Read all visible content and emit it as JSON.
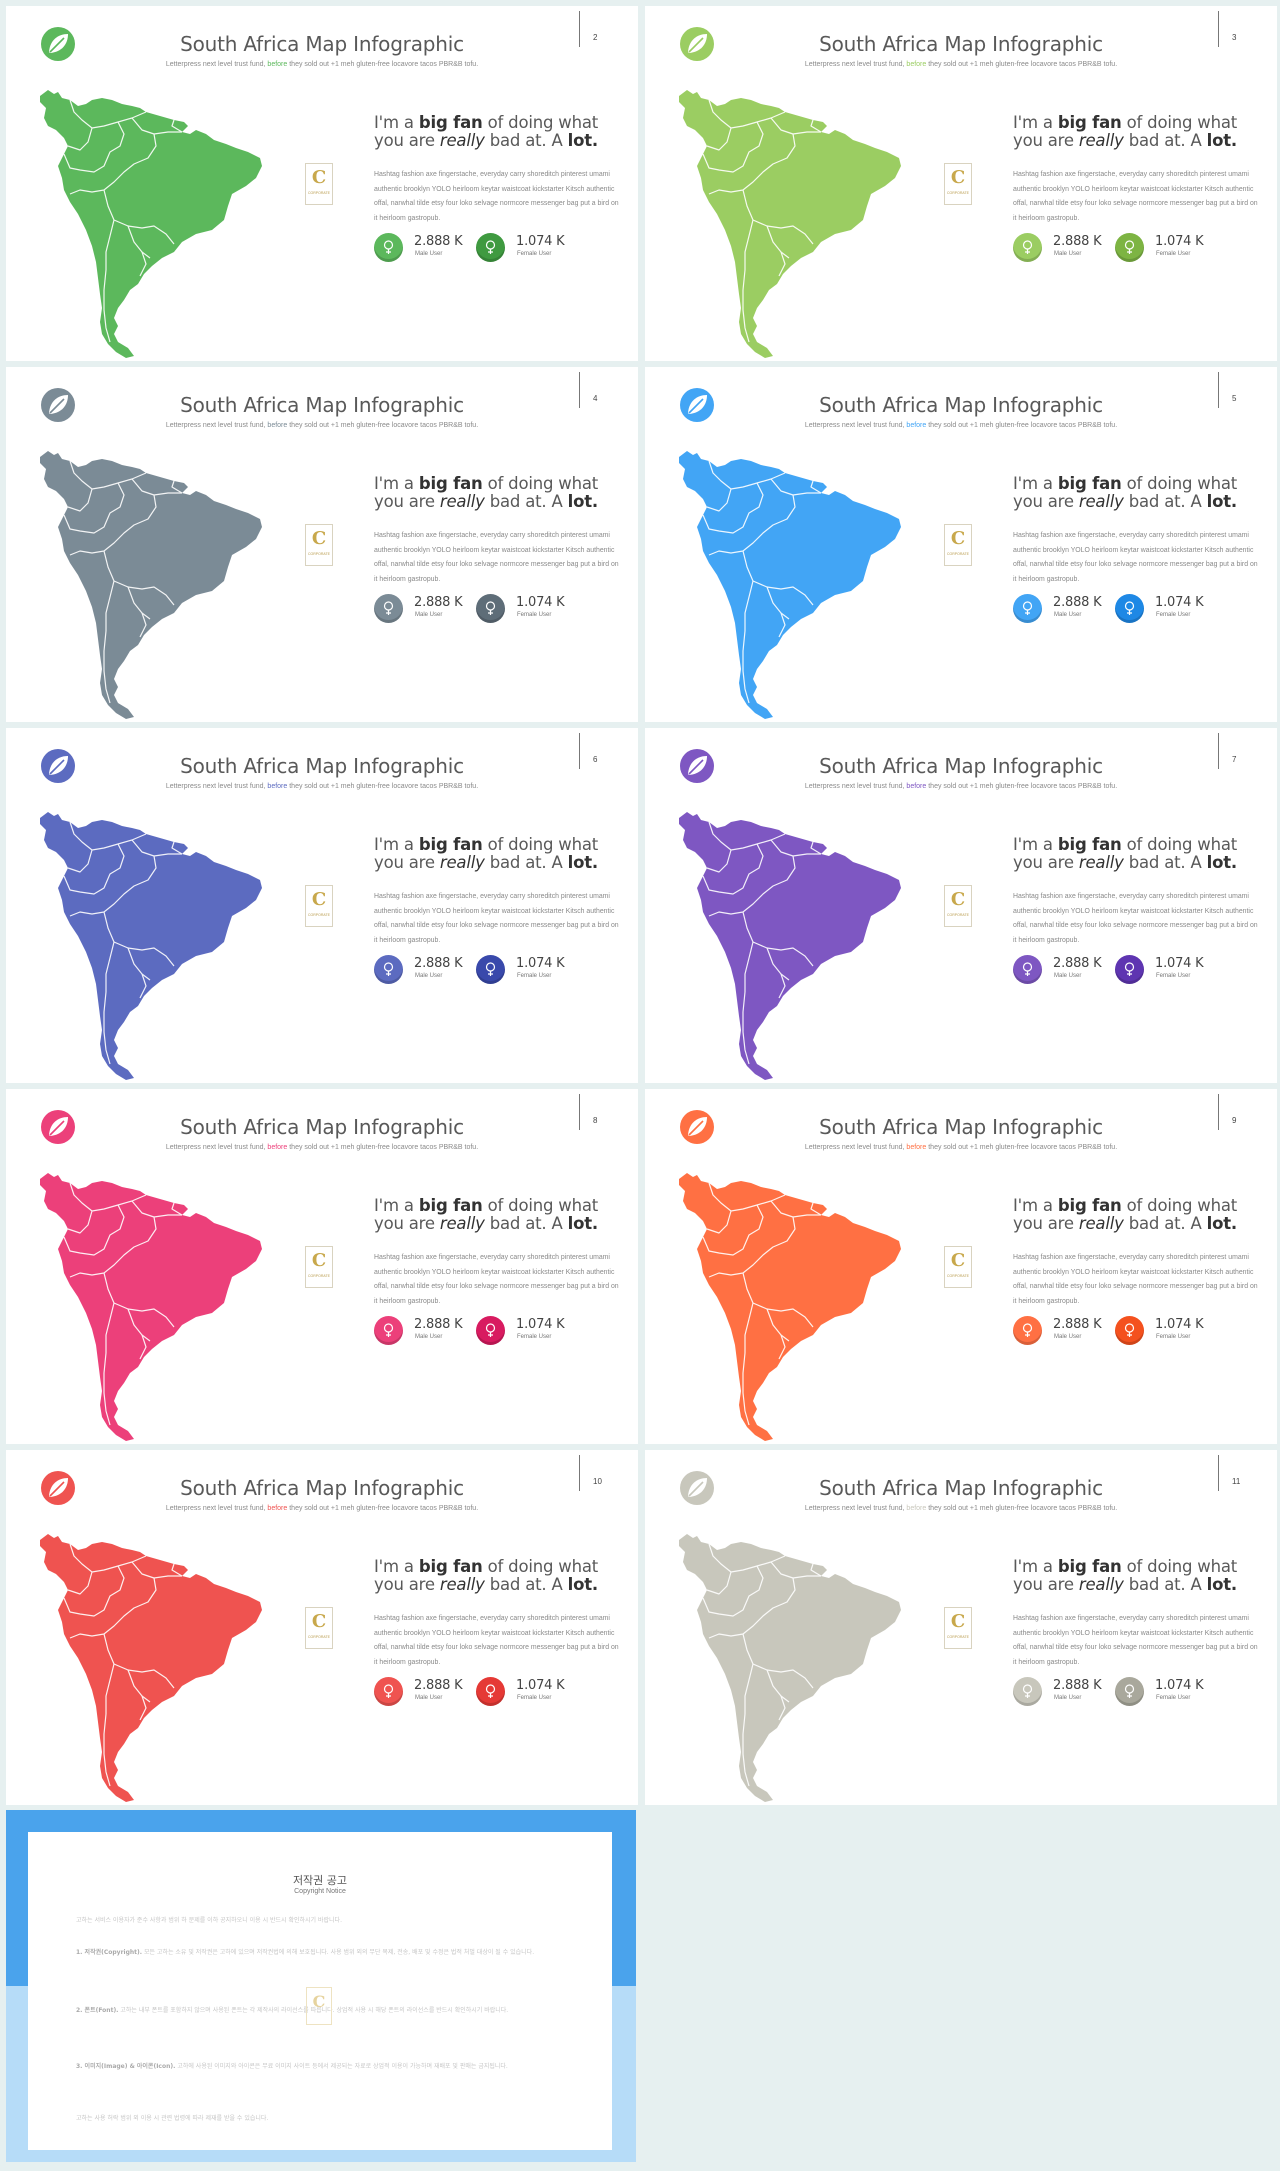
{
  "slides": [
    {
      "page": "2",
      "color": "#5cb85c",
      "dark": "#3f9a40",
      "title": "South Africa Map Infographic",
      "sub_pre": "Letterpress next level trust fund, ",
      "sub_hl": "before",
      "sub_post": " they sold out +1 meh gluten-free locavore tacos PBR&B tofu.",
      "head_a": "I'm a ",
      "head_b": "big fan",
      "head_c": " of doing what you are ",
      "head_d": "really",
      "head_e": " bad at. A ",
      "head_f": "lot.",
      "body": "Hashtag fashion axe fingerstache, everyday carry shoreditch pinterest umami authentic brooklyn YOLO heirloom keytar waistcoat kickstarter Kitsch authentic offal, narwhal tilde etsy four loko selvage normcore messenger bag put a bird on it heirloom gastropub.",
      "male_value": "2.888 K",
      "male_label": "Male User",
      "female_value": "1.074 K",
      "female_label": "Female User",
      "badge_letter": "C",
      "badge_text": "CORPORATE"
    },
    {
      "page": "3",
      "color": "#9bcd62",
      "dark": "#7db443",
      "title": "South Africa Map Infographic",
      "sub_pre": "Letterpress next level trust fund, ",
      "sub_hl": "before",
      "sub_post": " they sold out +1 meh gluten-free locavore tacos PBR&B tofu.",
      "head_a": "I'm a ",
      "head_b": "big fan",
      "head_c": " of doing what you are ",
      "head_d": "really",
      "head_e": " bad at. A ",
      "head_f": "lot.",
      "body": "Hashtag fashion axe fingerstache, everyday carry shoreditch pinterest umami authentic brooklyn YOLO heirloom keytar waistcoat kickstarter Kitsch authentic offal, narwhal tilde etsy four loko selvage normcore messenger bag put a bird on it heirloom gastropub.",
      "male_value": "2.888 K",
      "male_label": "Male User",
      "female_value": "1.074 K",
      "female_label": "Female User",
      "badge_letter": "C",
      "badge_text": "CORPORATE"
    },
    {
      "page": "4",
      "color": "#7b8b96",
      "dark": "#5e6d78",
      "title": "South Africa Map Infographic",
      "sub_pre": "Letterpress next level trust fund, ",
      "sub_hl": "before",
      "sub_post": " they sold out +1 meh gluten-free locavore tacos PBR&B tofu.",
      "head_a": "I'm a ",
      "head_b": "big fan",
      "head_c": " of doing what you are ",
      "head_d": "really",
      "head_e": " bad at. A ",
      "head_f": "lot.",
      "body": "Hashtag fashion axe fingerstache, everyday carry shoreditch pinterest umami authentic brooklyn YOLO heirloom keytar waistcoat kickstarter Kitsch authentic offal, narwhal tilde etsy four loko selvage normcore messenger bag put a bird on it heirloom gastropub.",
      "male_value": "2.888 K",
      "male_label": "Male User",
      "female_value": "1.074 K",
      "female_label": "Female User",
      "badge_letter": "C",
      "badge_text": "CORPORATE"
    },
    {
      "page": "5",
      "color": "#42a5f5",
      "dark": "#1e88e5",
      "title": "South Africa Map Infographic",
      "sub_pre": "Letterpress next level trust fund, ",
      "sub_hl": "before",
      "sub_post": " they sold out +1 meh gluten-free locavore tacos PBR&B tofu.",
      "head_a": "I'm a ",
      "head_b": "big fan",
      "head_c": " of doing what you are ",
      "head_d": "really",
      "head_e": " bad at. A ",
      "head_f": "lot.",
      "body": "Hashtag fashion axe fingerstache, everyday carry shoreditch pinterest umami authentic brooklyn YOLO heirloom keytar waistcoat kickstarter Kitsch authentic offal, narwhal tilde etsy four loko selvage normcore messenger bag put a bird on it heirloom gastropub.",
      "male_value": "2.888 K",
      "male_label": "Male User",
      "female_value": "1.074 K",
      "female_label": "Female User",
      "badge_letter": "C",
      "badge_text": "CORPORATE"
    },
    {
      "page": "6",
      "color": "#5c6bc0",
      "dark": "#3949ab",
      "title": "South Africa Map Infographic",
      "sub_pre": "Letterpress next level trust fund, ",
      "sub_hl": "before",
      "sub_post": " they sold out +1 meh gluten-free locavore tacos PBR&B tofu.",
      "head_a": "I'm a ",
      "head_b": "big fan",
      "head_c": " of doing what you are ",
      "head_d": "really",
      "head_e": " bad at. A ",
      "head_f": "lot.",
      "body": "Hashtag fashion axe fingerstache, everyday carry shoreditch pinterest umami authentic brooklyn YOLO heirloom keytar waistcoat kickstarter Kitsch authentic offal, narwhal tilde etsy four loko selvage normcore messenger bag put a bird on it heirloom gastropub.",
      "male_value": "2.888 K",
      "male_label": "Male User",
      "female_value": "1.074 K",
      "female_label": "Female User",
      "badge_letter": "C",
      "badge_text": "CORPORATE"
    },
    {
      "page": "7",
      "color": "#7e57c2",
      "dark": "#5e35b1",
      "title": "South Africa Map Infographic",
      "sub_pre": "Letterpress next level trust fund, ",
      "sub_hl": "before",
      "sub_post": " they sold out +1 meh gluten-free locavore tacos PBR&B tofu.",
      "head_a": "I'm a ",
      "head_b": "big fan",
      "head_c": " of doing what you are ",
      "head_d": "really",
      "head_e": " bad at. A ",
      "head_f": "lot.",
      "body": "Hashtag fashion axe fingerstache, everyday carry shoreditch pinterest umami authentic brooklyn YOLO heirloom keytar waistcoat kickstarter Kitsch authentic offal, narwhal tilde etsy four loko selvage normcore messenger bag put a bird on it heirloom gastropub.",
      "male_value": "2.888 K",
      "male_label": "Male User",
      "female_value": "1.074 K",
      "female_label": "Female User",
      "badge_letter": "C",
      "badge_text": "CORPORATE"
    },
    {
      "page": "8",
      "color": "#ec407a",
      "dark": "#d81b60",
      "title": "South Africa Map Infographic",
      "sub_pre": "Letterpress next level trust fund, ",
      "sub_hl": "before",
      "sub_post": " they sold out +1 meh gluten-free locavore tacos PBR&B tofu.",
      "head_a": "I'm a ",
      "head_b": "big fan",
      "head_c": " of doing what you are ",
      "head_d": "really",
      "head_e": " bad at. A ",
      "head_f": "lot.",
      "body": "Hashtag fashion axe fingerstache, everyday carry shoreditch pinterest umami authentic brooklyn YOLO heirloom keytar waistcoat kickstarter Kitsch authentic offal, narwhal tilde etsy four loko selvage normcore messenger bag put a bird on it heirloom gastropub.",
      "male_value": "2.888 K",
      "male_label": "Male User",
      "female_value": "1.074 K",
      "female_label": "Female User",
      "badge_letter": "C",
      "badge_text": "CORPORATE"
    },
    {
      "page": "9",
      "color": "#ff7043",
      "dark": "#f4511e",
      "title": "South Africa Map Infographic",
      "sub_pre": "Letterpress next level trust fund, ",
      "sub_hl": "before",
      "sub_post": " they sold out +1 meh gluten-free locavore tacos PBR&B tofu.",
      "head_a": "I'm a ",
      "head_b": "big fan",
      "head_c": " of doing what you are ",
      "head_d": "really",
      "head_e": " bad at. A ",
      "head_f": "lot.",
      "body": "Hashtag fashion axe fingerstache, everyday carry shoreditch pinterest umami authentic brooklyn YOLO heirloom keytar waistcoat kickstarter Kitsch authentic offal, narwhal tilde etsy four loko selvage normcore messenger bag put a bird on it heirloom gastropub.",
      "male_value": "2.888 K",
      "male_label": "Male User",
      "female_value": "1.074 K",
      "female_label": "Female User",
      "badge_letter": "C",
      "badge_text": "CORPORATE"
    },
    {
      "page": "10",
      "color": "#ef5350",
      "dark": "#e53935",
      "title": "South Africa Map Infographic",
      "sub_pre": "Letterpress next level trust fund, ",
      "sub_hl": "before",
      "sub_post": " they sold out +1 meh gluten-free locavore tacos PBR&B tofu.",
      "head_a": "I'm a ",
      "head_b": "big fan",
      "head_c": " of doing what you are ",
      "head_d": "really",
      "head_e": " bad at. A ",
      "head_f": "lot.",
      "body": "Hashtag fashion axe fingerstache, everyday carry shoreditch pinterest umami authentic brooklyn YOLO heirloom keytar waistcoat kickstarter Kitsch authentic offal, narwhal tilde etsy four loko selvage normcore messenger bag put a bird on it heirloom gastropub.",
      "male_value": "2.888 K",
      "male_label": "Male User",
      "female_value": "1.074 K",
      "female_label": "Female User",
      "badge_letter": "C",
      "badge_text": "CORPORATE"
    },
    {
      "page": "11",
      "color": "#c8c7bc",
      "dark": "#a9a89c",
      "title": "South Africa Map Infographic",
      "sub_pre": "Letterpress next level trust fund, ",
      "sub_hl": "before",
      "sub_post": " they sold out +1 meh gluten-free locavore tacos PBR&B tofu.",
      "head_a": "I'm a ",
      "head_b": "big fan",
      "head_c": " of doing what you are ",
      "head_d": "really",
      "head_e": " bad at. A ",
      "head_f": "lot.",
      "body": "Hashtag fashion axe fingerstache, everyday carry shoreditch pinterest umami authentic brooklyn YOLO heirloom keytar waistcoat kickstarter Kitsch authentic offal, narwhal tilde etsy four loko selvage normcore messenger bag put a bird on it heirloom gastropub.",
      "male_value": "2.888 K",
      "male_label": "Male User",
      "female_value": "1.074 K",
      "female_label": "Female User",
      "badge_letter": "C",
      "badge_text": "CORPORATE"
    }
  ],
  "copyright": {
    "title": "저작권 공고",
    "subtitle": "Copyright Notice",
    "intro": "고하는 서비스 이용자가 준수 사항과 범위 하 문제를 이하 공지하오니 이용 시 반드시 확인하시기 바랍니다.",
    "s1_title": "1. 저작권(Copyright).",
    "s1_text": "모든 고하는 소유 및 저작권은 고하에 있으며 저작권법에 의해 보호됩니다. 사용 범위 외의 무단 복제, 전송, 배포 및 수정은 법적 처벌 대상이 될 수 있습니다.",
    "s2_title": "2. 폰트(Font).",
    "s2_text": "고하는 내부 폰트를 포함하지 않으며 사용된 폰트는 각 제작사의 라이선스를 따릅니다. 상업적 사용 시 해당 폰트의 라이선스를 반드시 확인하시기 바랍니다.",
    "s3_title": "3. 이미지(Image) & 아이콘(Icon).",
    "s3_text": "고하에 사용된 이미지와 아이콘은 무료 이미지 사이트 등에서 제공되는 자료로 상업적 이용이 가능하며 재배포 및 판매는 금지됩니다.",
    "outro": "고하는 사용 허락 범위 외 이용 시 관련 법령에 따라 제재를 받을 수 있습니다.",
    "badge_letter": "C"
  }
}
